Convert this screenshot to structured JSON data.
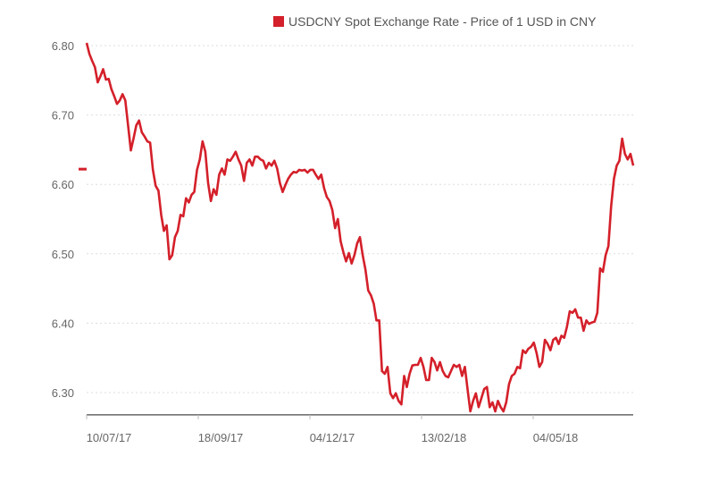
{
  "chart_data": {
    "type": "line",
    "title": "",
    "legend": {
      "label": "USDCNY Spot Exchange Rate - Price of 1 USD in CNY",
      "placement": "top-right"
    },
    "xlabel": "",
    "ylabel": "",
    "ylim": [
      6.268,
      6.81
    ],
    "y_ticks": [
      6.8,
      6.7,
      6.6,
      6.5,
      6.4,
      6.3
    ],
    "y_tick_labels": [
      "6.80",
      "6.70",
      "6.60",
      "6.50",
      "6.40",
      "6.30"
    ],
    "x_tick_labels": [
      "10/07/17",
      "18/09/17",
      "04/12/17",
      "13/02/18",
      "04/05/18"
    ],
    "x_range": [
      "10/07/17",
      "end of series"
    ],
    "grid": true,
    "current_value_marker": 6.622,
    "colors": {
      "line": "#d4202a",
      "grid": "#dddddd",
      "axis": "#666666",
      "text": "#666666"
    },
    "series": [
      {
        "name": "USDCNY",
        "values": [
          6.804,
          6.788,
          6.778,
          6.769,
          6.747,
          6.756,
          6.766,
          6.751,
          6.752,
          6.737,
          6.727,
          6.716,
          6.721,
          6.73,
          6.721,
          6.685,
          6.649,
          6.666,
          6.685,
          6.692,
          6.675,
          6.669,
          6.662,
          6.66,
          6.621,
          6.598,
          6.591,
          6.556,
          6.533,
          6.541,
          6.492,
          6.498,
          6.524,
          6.533,
          6.556,
          6.554,
          6.58,
          6.574,
          6.585,
          6.589,
          6.621,
          6.636,
          6.662,
          6.647,
          6.602,
          6.576,
          6.593,
          6.585,
          6.614,
          6.623,
          6.614,
          6.636,
          6.634,
          6.64,
          6.647,
          6.636,
          6.627,
          6.605,
          6.631,
          6.636,
          6.627,
          6.64,
          6.64,
          6.636,
          6.634,
          6.623,
          6.631,
          6.627,
          6.634,
          6.623,
          6.602,
          6.589,
          6.599,
          6.608,
          6.614,
          6.618,
          6.617,
          6.621,
          6.62,
          6.621,
          6.617,
          6.621,
          6.621,
          6.614,
          6.608,
          6.614,
          6.595,
          6.582,
          6.576,
          6.563,
          6.537,
          6.55,
          6.518,
          6.502,
          6.489,
          6.501,
          6.486,
          6.498,
          6.515,
          6.524,
          6.498,
          6.477,
          6.447,
          6.44,
          6.428,
          6.404,
          6.404,
          6.331,
          6.327,
          6.337,
          6.299,
          6.292,
          6.299,
          6.288,
          6.283,
          6.324,
          6.308,
          6.327,
          6.339,
          6.34,
          6.34,
          6.35,
          6.337,
          6.318,
          6.318,
          6.35,
          6.344,
          6.332,
          6.344,
          6.331,
          6.324,
          6.322,
          6.331,
          6.34,
          6.337,
          6.34,
          6.324,
          6.337,
          6.305,
          6.273,
          6.288,
          6.299,
          6.279,
          6.292,
          6.305,
          6.308,
          6.279,
          6.286,
          6.273,
          6.288,
          6.279,
          6.273,
          6.286,
          6.312,
          6.324,
          6.327,
          6.337,
          6.335,
          6.361,
          6.357,
          6.363,
          6.366,
          6.372,
          6.357,
          6.337,
          6.344,
          6.376,
          6.37,
          6.361,
          6.376,
          6.379,
          6.37,
          6.382,
          6.379,
          6.395,
          6.417,
          6.415,
          6.42,
          6.408,
          6.408,
          6.389,
          6.404,
          6.399,
          6.401,
          6.402,
          6.415,
          6.479,
          6.474,
          6.498,
          6.511,
          6.569,
          6.608,
          6.627,
          6.634,
          6.666,
          6.644,
          6.636,
          6.644,
          6.627
        ]
      }
    ]
  }
}
